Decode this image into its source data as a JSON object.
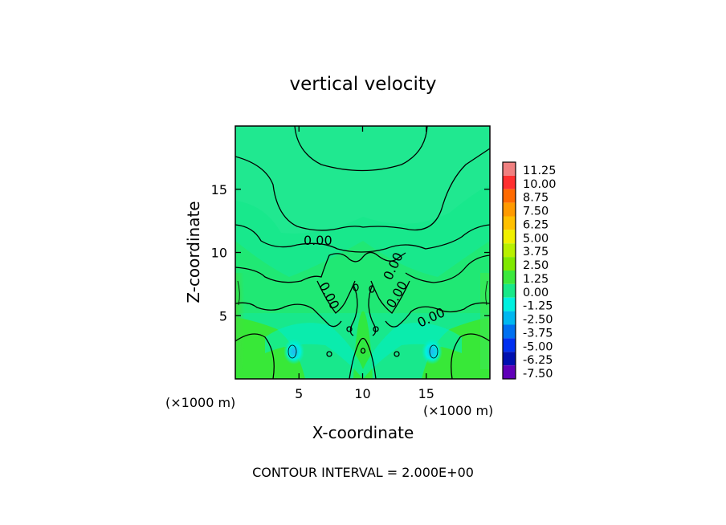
{
  "chart_data": {
    "type": "heatmap",
    "title": "vertical velocity",
    "xlabel": "X-coordinate",
    "ylabel": "Z-coordinate",
    "x_unit": "(×1000 m)",
    "y_unit": "(×1000 m)",
    "xlim": [
      0,
      20
    ],
    "ylim": [
      0,
      20
    ],
    "x_ticks": [
      5,
      10,
      15
    ],
    "y_ticks": [
      5,
      10,
      15
    ],
    "contour_labels": [
      "0.00",
      "0.00",
      "0.00",
      "0.00",
      "0.00"
    ],
    "footer": "CONTOUR INTERVAL = 2.000E+00",
    "colorbar": {
      "levels": [
        {
          "label": "11.25",
          "color": "#f08080"
        },
        {
          "label": "10.00",
          "color": "#ff3030"
        },
        {
          "label": "8.75",
          "color": "#ff6a00"
        },
        {
          "label": "7.50",
          "color": "#ff9a00"
        },
        {
          "label": "6.25",
          "color": "#ffc000"
        },
        {
          "label": "5.00",
          "color": "#f0f000"
        },
        {
          "label": "3.75",
          "color": "#b8f000"
        },
        {
          "label": "2.50",
          "color": "#80e800"
        },
        {
          "label": "1.25",
          "color": "#3ce83c"
        },
        {
          "label": "0.00",
          "color": "#18e888"
        },
        {
          "label": "-1.25",
          "color": "#00f0e0"
        },
        {
          "label": "-2.50",
          "color": "#00b8f0"
        },
        {
          "label": "-3.75",
          "color": "#0070f0"
        },
        {
          "label": "-5.00",
          "color": "#0030f0"
        },
        {
          "label": "-6.25",
          "color": "#0010b0"
        },
        {
          "label": "-7.50",
          "color": "#6000b8"
        }
      ]
    }
  }
}
